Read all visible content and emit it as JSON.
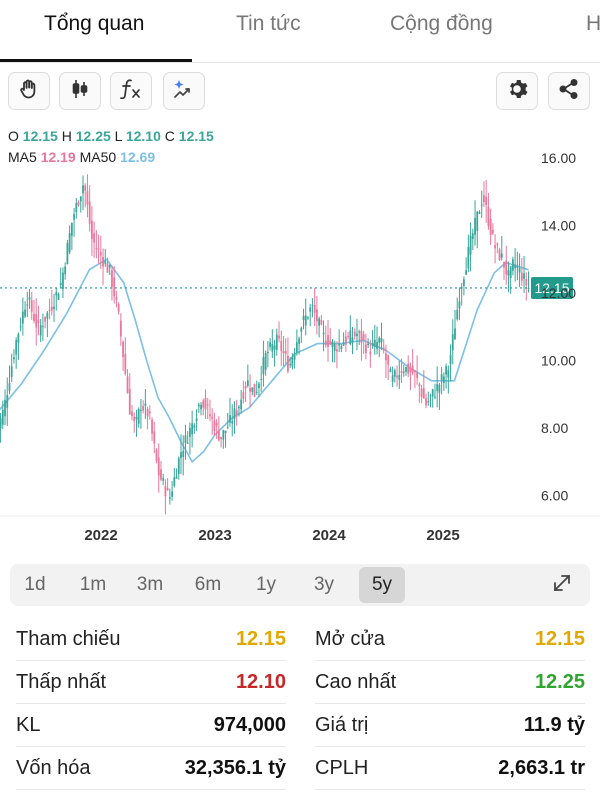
{
  "tabs": [
    {
      "label": "Tổng quan",
      "active": true
    },
    {
      "label": "Tin tức",
      "active": false
    },
    {
      "label": "Cộng đồng",
      "active": false
    },
    {
      "label": "H",
      "active": false
    }
  ],
  "toolbar": {
    "left_icons": [
      "hand-icon",
      "candlestick-icon",
      "function-icon",
      "ai-sparkle-icon"
    ],
    "right_icons": [
      "gear-icon",
      "share-icon"
    ]
  },
  "ohlc": {
    "o_label": "O",
    "o_value": "12.15",
    "h_label": "H",
    "h_value": "12.25",
    "l_label": "L",
    "l_value": "12.10",
    "c_label": "C",
    "c_value": "12.15",
    "ma5_label": "MA5",
    "ma5_value": "12.19",
    "ma50_label": "MA50",
    "ma50_value": "12.69"
  },
  "chart_data": {
    "type": "line",
    "x_tick_labels": [
      "2022",
      "2023",
      "2024",
      "2025"
    ],
    "y_tick_labels": [
      "16.00",
      "14.00",
      "12.00",
      "10.00",
      "8.00",
      "6.00"
    ],
    "ylim": [
      5.5,
      16.5
    ],
    "current_price_label": "12.15",
    "current_price": 12.15,
    "price_series": {
      "x": [
        2021.08,
        2021.15,
        2021.25,
        2021.35,
        2021.45,
        2021.55,
        2021.65,
        2021.75,
        2021.85,
        2021.92,
        2022.0,
        2022.08,
        2022.15,
        2022.25,
        2022.3,
        2022.35,
        2022.42,
        2022.5,
        2022.6,
        2022.7,
        2022.8,
        2022.88,
        2022.95,
        2023.05,
        2023.12,
        2023.2,
        2023.28,
        2023.35,
        2023.45,
        2023.55,
        2023.65,
        2023.75,
        2023.85,
        2023.95,
        2024.05,
        2024.15,
        2024.25,
        2024.35,
        2024.45,
        2024.55,
        2024.65,
        2024.75,
        2024.85,
        2024.95,
        2025.05,
        2025.15,
        2025.25,
        2025.35,
        2025.45,
        2025.52,
        2025.58,
        2025.62,
        2025.68,
        2025.75
      ],
      "y": [
        7.8,
        8.6,
        10.5,
        11.9,
        10.9,
        11.5,
        12.3,
        14.2,
        15.3,
        13.6,
        13.1,
        12.6,
        11.4,
        8.6,
        8.0,
        8.7,
        8.4,
        6.7,
        5.9,
        7.3,
        8.1,
        8.9,
        8.4,
        7.7,
        8.1,
        8.6,
        9.4,
        9.0,
        10.2,
        10.6,
        9.8,
        11.0,
        11.6,
        10.7,
        10.4,
        10.6,
        10.8,
        10.3,
        10.6,
        9.4,
        9.8,
        9.6,
        8.7,
        9.2,
        9.8,
        12.1,
        13.6,
        14.9,
        13.4,
        13.0,
        12.4,
        12.9,
        12.6,
        12.15
      ]
    },
    "ma5": {
      "name": "MA5",
      "last": 12.19,
      "color": "#e7779b"
    },
    "ma50": {
      "name": "MA50",
      "color": "#7cc0e6",
      "x": [
        2021.1,
        2021.3,
        2021.5,
        2021.7,
        2021.9,
        2022.05,
        2022.2,
        2022.3,
        2022.4,
        2022.5,
        2022.6,
        2022.7,
        2022.8,
        2022.9,
        2023.0,
        2023.15,
        2023.3,
        2023.5,
        2023.7,
        2023.9,
        2024.1,
        2024.3,
        2024.5,
        2024.7,
        2024.9,
        2025.1,
        2025.3,
        2025.45,
        2025.55,
        2025.65,
        2025.75
      ],
      "y": [
        8.5,
        9.3,
        10.3,
        11.4,
        12.7,
        13.0,
        12.3,
        11.2,
        10.0,
        8.9,
        8.3,
        7.6,
        7.0,
        7.3,
        7.8,
        8.3,
        8.6,
        9.4,
        10.2,
        10.5,
        10.5,
        10.6,
        10.3,
        9.8,
        9.4,
        9.4,
        11.5,
        12.6,
        12.9,
        12.8,
        12.69
      ]
    }
  },
  "ranges": {
    "options": [
      "1d",
      "1m",
      "3m",
      "6m",
      "1y",
      "3y",
      "5y"
    ],
    "selected": "5y"
  },
  "stats": [
    {
      "label": "Tham chiếu",
      "value": "12.15",
      "color": "yellow"
    },
    {
      "label": "Mở cửa",
      "value": "12.15",
      "color": "yellow"
    },
    {
      "label": "Thấp nhất",
      "value": "12.10",
      "color": "red"
    },
    {
      "label": "Cao nhất",
      "value": "12.25",
      "color": "green"
    },
    {
      "label": "KL",
      "value": "974,000",
      "color": "default"
    },
    {
      "label": "Giá trị",
      "value": "11.9 tỷ",
      "color": "default"
    },
    {
      "label": "Vốn hóa",
      "value": "32,356.1 tỷ",
      "color": "default"
    },
    {
      "label": "CPLH",
      "value": "2,663.1 tr",
      "color": "default"
    }
  ],
  "colors": {
    "candle_up": "#3aa59a",
    "candle_down": "#e7779b",
    "ma50": "#7cc0e6",
    "price_tag": "#229b8c"
  }
}
